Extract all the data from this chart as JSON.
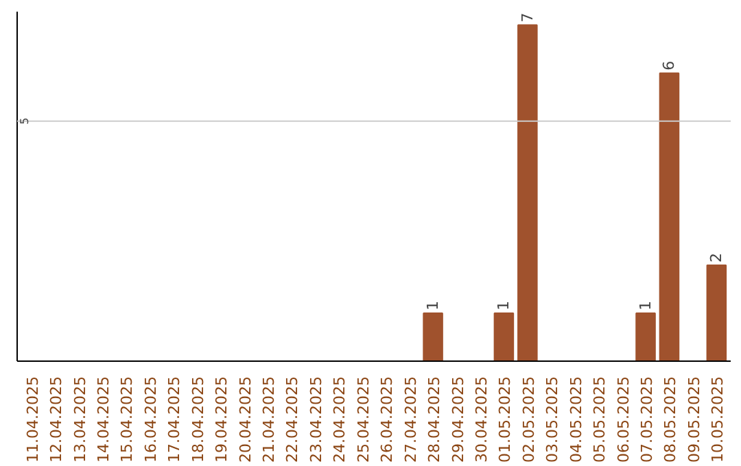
{
  "chart_data": {
    "type": "bar",
    "categories": [
      "11.04.2025",
      "12.04.2025",
      "13.04.2025",
      "14.04.2025",
      "15.04.2025",
      "16.04.2025",
      "17.04.2025",
      "18.04.2025",
      "19.04.2025",
      "20.04.2025",
      "21.04.2025",
      "22.04.2025",
      "23.04.2025",
      "24.04.2025",
      "25.04.2025",
      "26.04.2025",
      "27.04.2025",
      "28.04.2025",
      "29.04.2025",
      "30.04.2025",
      "01.05.2025",
      "02.05.2025",
      "03.05.2025",
      "04.05.2025",
      "05.05.2025",
      "06.05.2025",
      "07.05.2025",
      "08.05.2025",
      "09.05.2025",
      "10.05.2025"
    ],
    "values": [
      null,
      null,
      null,
      null,
      null,
      null,
      null,
      null,
      null,
      null,
      null,
      null,
      null,
      null,
      null,
      null,
      null,
      1,
      null,
      null,
      1,
      7,
      null,
      null,
      null,
      null,
      1,
      6,
      null,
      2
    ],
    "data_labels": true,
    "color": "#a0522d",
    "ref_lines": [
      {
        "axis": "y",
        "value": 5,
        "label": "5",
        "color": "#cccccc"
      }
    ]
  }
}
